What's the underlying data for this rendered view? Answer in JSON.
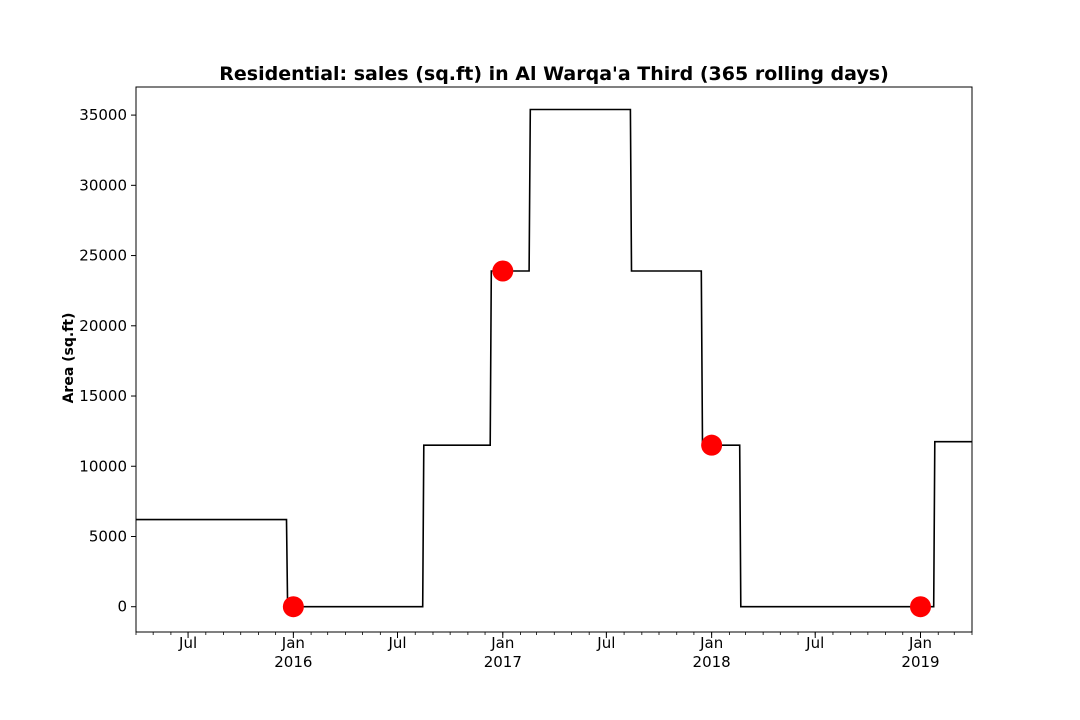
{
  "chart_data": {
    "type": "line",
    "title": "Residential: sales (sq.ft) in Al Warqa'a Third (365 rolling days)",
    "xlabel": "",
    "ylabel": "Area (sq.ft)",
    "xlim": [
      "2015-04-01",
      "2019-04-01"
    ],
    "ylim": [
      -1800,
      37000
    ],
    "yticks": [
      0,
      5000,
      10000,
      15000,
      20000,
      25000,
      30000,
      35000
    ],
    "xticks": [
      {
        "date": "2015-07-01",
        "label": "Jul"
      },
      {
        "date": "2016-01-01",
        "label": "Jan\n2016"
      },
      {
        "date": "2016-07-01",
        "label": "Jul"
      },
      {
        "date": "2017-01-01",
        "label": "Jan\n2017"
      },
      {
        "date": "2017-07-01",
        "label": "Jul"
      },
      {
        "date": "2018-01-01",
        "label": "Jan\n2018"
      },
      {
        "date": "2018-07-01",
        "label": "Jul"
      },
      {
        "date": "2019-01-01",
        "label": "Jan\n2019"
      }
    ],
    "grid": false,
    "series": [
      {
        "style": "step",
        "color": "#000000",
        "points": [
          {
            "x": "2015-04-01",
            "y": 6200
          },
          {
            "x": "2015-12-20",
            "y": 6200
          },
          {
            "x": "2015-12-22",
            "y": 0
          },
          {
            "x": "2016-08-14",
            "y": 0
          },
          {
            "x": "2016-08-16",
            "y": 11500
          },
          {
            "x": "2016-12-10",
            "y": 11500
          },
          {
            "x": "2016-12-12",
            "y": 23900
          },
          {
            "x": "2017-02-16",
            "y": 23900
          },
          {
            "x": "2017-02-18",
            "y": 35400
          },
          {
            "x": "2017-08-12",
            "y": 35400
          },
          {
            "x": "2017-08-14",
            "y": 23900
          },
          {
            "x": "2017-12-14",
            "y": 23900
          },
          {
            "x": "2017-12-16",
            "y": 11500
          },
          {
            "x": "2018-02-19",
            "y": 11500
          },
          {
            "x": "2018-02-21",
            "y": 0
          },
          {
            "x": "2019-01-24",
            "y": 0
          },
          {
            "x": "2019-01-26",
            "y": 11750
          },
          {
            "x": "2019-04-01",
            "y": 11750
          }
        ]
      },
      {
        "style": "markers",
        "color": "#ff0000",
        "points": [
          {
            "x": "2016-01-01",
            "y": 0
          },
          {
            "x": "2017-01-01",
            "y": 23900
          },
          {
            "x": "2018-01-01",
            "y": 11500
          },
          {
            "x": "2019-01-01",
            "y": 0
          }
        ]
      }
    ]
  }
}
